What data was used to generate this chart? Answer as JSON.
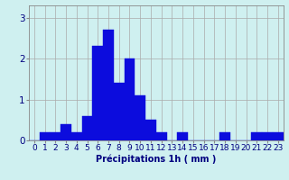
{
  "values": [
    0,
    0.2,
    0.2,
    0.4,
    0.2,
    0.6,
    2.3,
    2.7,
    1.4,
    2.0,
    1.1,
    0.5,
    0.2,
    0.0,
    0.2,
    0.0,
    0.0,
    0.0,
    0.2,
    0.0,
    0.0,
    0.2,
    0.2,
    0.2
  ],
  "categories": [
    "0",
    "1",
    "2",
    "3",
    "4",
    "5",
    "6",
    "7",
    "8",
    "9",
    "10",
    "11",
    "12",
    "13",
    "14",
    "15",
    "16",
    "17",
    "18",
    "19",
    "20",
    "21",
    "22",
    "23"
  ],
  "bar_color": "#0c0cdd",
  "background_color": "#cff0f0",
  "grid_color": "#aaaaaa",
  "xlabel": "Précipitations 1h ( mm )",
  "ylim": [
    0,
    3.3
  ],
  "yticks": [
    0,
    1,
    2,
    3
  ],
  "xlabel_fontsize": 7,
  "tick_fontsize": 6.5,
  "title": ""
}
